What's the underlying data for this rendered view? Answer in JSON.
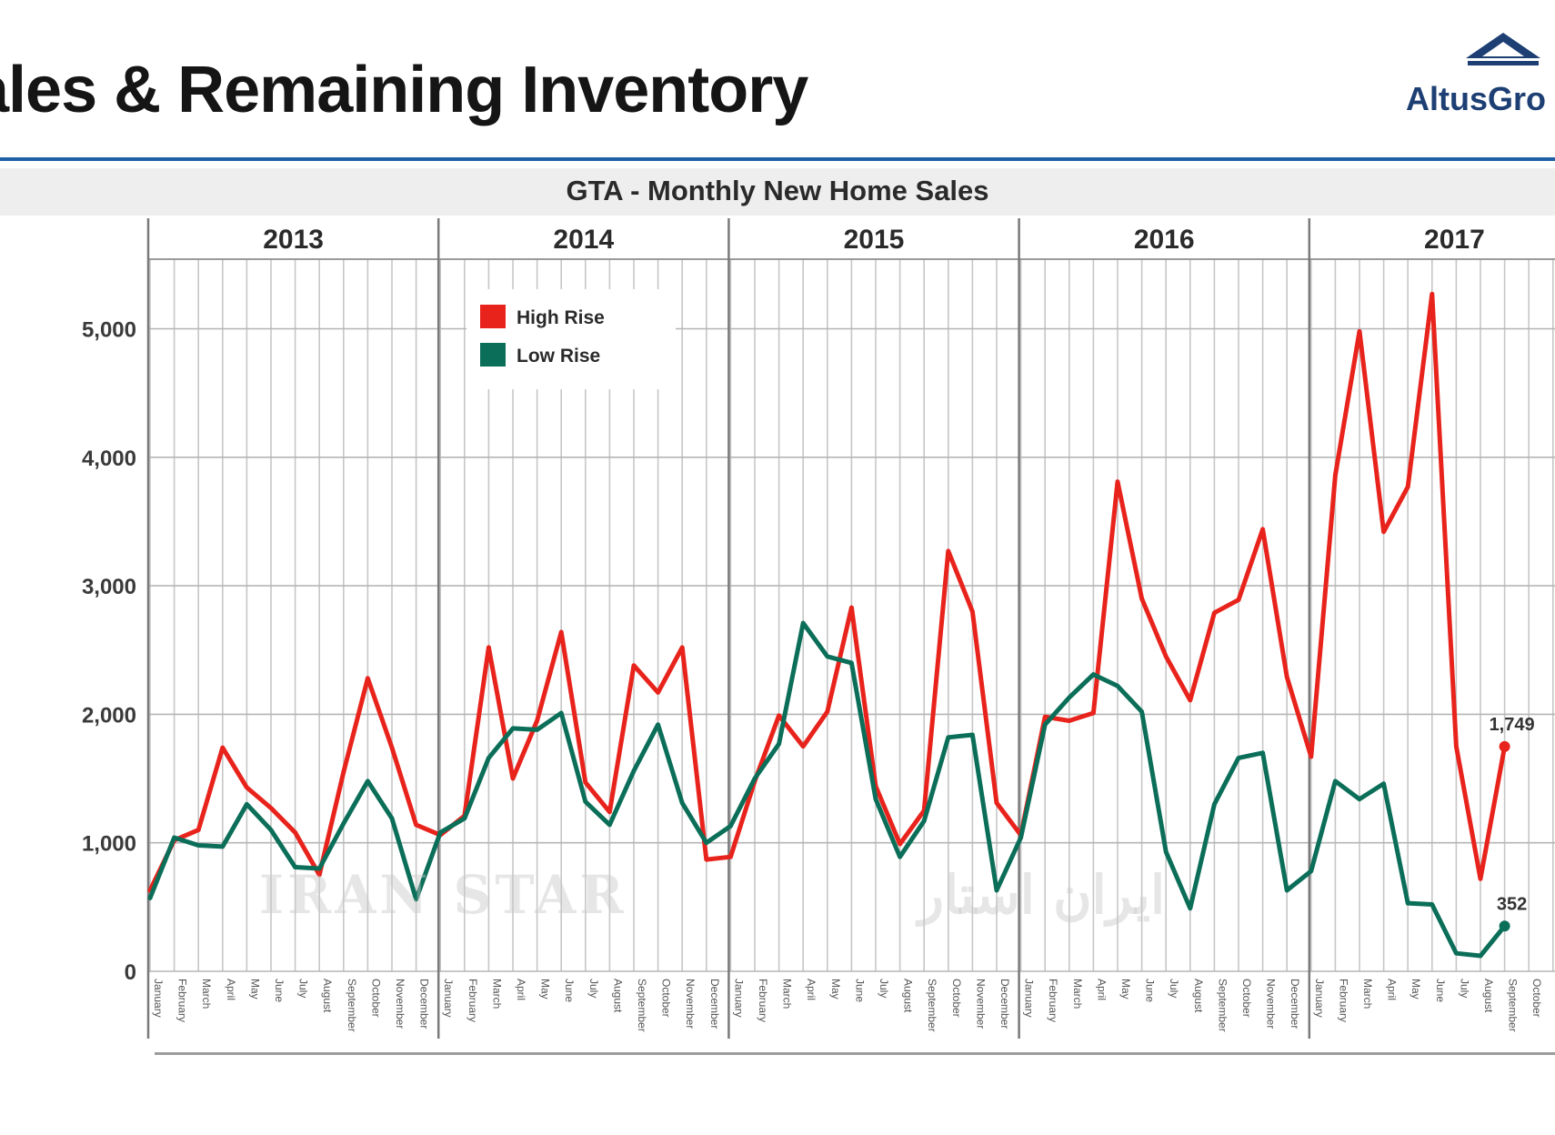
{
  "page": {
    "title": "ales & Remaining Inventory",
    "brand": "AltusGro",
    "watermark_left": "IRAN STAR",
    "watermark_right": "ایران استار"
  },
  "chart_data": {
    "type": "line",
    "title": "GTA - Monthly New Home Sales",
    "xlabel": "",
    "ylabel": "",
    "ylim": [
      0,
      5500
    ],
    "yticks": [
      0,
      1000,
      2000,
      3000,
      4000,
      5000
    ],
    "ytick_labels": [
      "0",
      "1,000",
      "2,000",
      "3,000",
      "4,000",
      "5,000"
    ],
    "grid": true,
    "legend_position": "top-left",
    "years": [
      "2013",
      "2014",
      "2015",
      "2016",
      "2017"
    ],
    "month_labels": [
      "January",
      "February",
      "March",
      "April",
      "May",
      "June",
      "July",
      "August",
      "September",
      "October",
      "November",
      "December"
    ],
    "series": [
      {
        "name": "High Rise",
        "color": "#e8231c",
        "values": [
          630,
          1020,
          1100,
          1740,
          1430,
          1270,
          1080,
          750,
          1550,
          2280,
          1740,
          1140,
          1060,
          1210,
          2520,
          1500,
          1950,
          2640,
          1470,
          1240,
          2380,
          2170,
          2520,
          870,
          890,
          1480,
          1990,
          1750,
          2020,
          2830,
          1440,
          990,
          1250,
          3270,
          2800,
          1310,
          1060,
          1980,
          1950,
          2010,
          3810,
          2900,
          2450,
          2110,
          2790,
          2890,
          3440,
          2290,
          1670,
          3860,
          4980,
          3420,
          3770,
          5270,
          1750,
          720,
          1749
        ]
      },
      {
        "name": "Low Rise",
        "color": "#0b6e58",
        "values": [
          570,
          1040,
          980,
          970,
          1300,
          1100,
          810,
          800,
          1150,
          1480,
          1190,
          560,
          1080,
          1190,
          1660,
          1890,
          1880,
          2010,
          1320,
          1140,
          1560,
          1920,
          1310,
          1000,
          1130,
          1500,
          1770,
          2710,
          2450,
          2400,
          1340,
          890,
          1170,
          1820,
          1840,
          630,
          1040,
          1920,
          2130,
          2310,
          2220,
          2020,
          930,
          490,
          1300,
          1660,
          1700,
          630,
          780,
          1480,
          1340,
          1460,
          530,
          520,
          140,
          120,
          352
        ]
      }
    ],
    "annotations": [
      {
        "series": "High Rise",
        "index": 56,
        "label": "1,749"
      },
      {
        "series": "Low Rise",
        "index": 56,
        "label": "352"
      }
    ]
  }
}
